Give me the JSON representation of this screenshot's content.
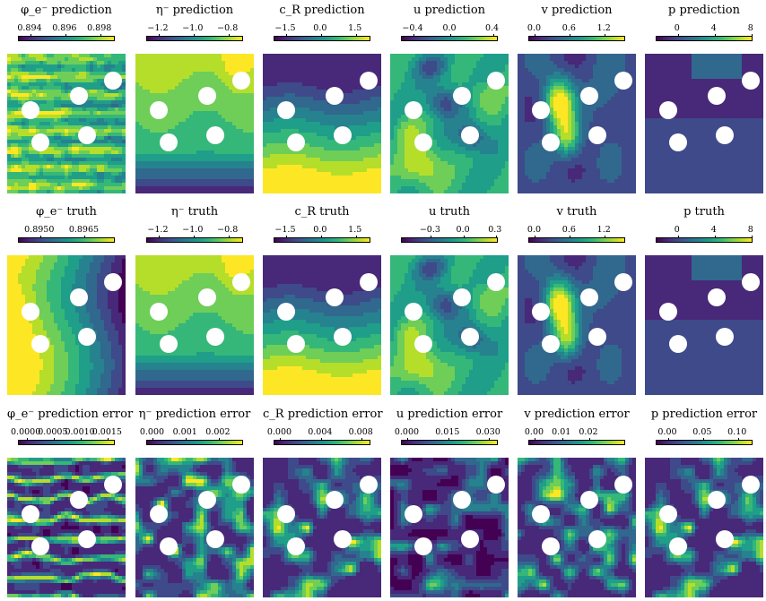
{
  "chart_data": [
    {
      "type": "heatmap",
      "title": "φ_e⁻ prediction",
      "ticks": [
        "0.894",
        "0.896",
        "0.898"
      ],
      "tick_pos": [
        0.12,
        0.48,
        0.84
      ],
      "colormap": "viridis",
      "pattern": "phi-pred"
    },
    {
      "type": "heatmap",
      "title": "η⁻ prediction",
      "ticks": [
        "−1.2",
        "−1.0",
        "−0.8"
      ],
      "tick_pos": [
        0.12,
        0.48,
        0.84
      ],
      "colormap": "viridis",
      "pattern": "eta"
    },
    {
      "type": "heatmap",
      "title": "c_R prediction",
      "ticks": [
        "−1.5",
        "0.0",
        "1.5"
      ],
      "tick_pos": [
        0.12,
        0.48,
        0.84
      ],
      "colormap": "viridis",
      "pattern": "cR"
    },
    {
      "type": "heatmap",
      "title": "u prediction",
      "ticks": [
        "−0.4",
        "0.0",
        "0.4"
      ],
      "tick_pos": [
        0.12,
        0.5,
        0.94
      ],
      "colormap": "viridis",
      "pattern": "u"
    },
    {
      "type": "heatmap",
      "title": "v prediction",
      "ticks": [
        "0.0",
        "0.6",
        "1.2"
      ],
      "tick_pos": [
        0.06,
        0.42,
        0.78
      ],
      "colormap": "viridis",
      "pattern": "v"
    },
    {
      "type": "heatmap",
      "title": "p prediction",
      "ticks": [
        "0",
        "4",
        "8"
      ],
      "tick_pos": [
        0.22,
        0.6,
        0.98
      ],
      "colormap": "viridis",
      "pattern": "p"
    },
    {
      "type": "heatmap",
      "title": "φ_e⁻ truth",
      "ticks": [
        "0.8950",
        "0.8965"
      ],
      "tick_pos": [
        0.22,
        0.68
      ],
      "colormap": "viridis",
      "pattern": "phi-truth"
    },
    {
      "type": "heatmap",
      "title": "η⁻ truth",
      "ticks": [
        "−1.2",
        "−1.0",
        "−0.8"
      ],
      "tick_pos": [
        0.12,
        0.48,
        0.84
      ],
      "colormap": "viridis",
      "pattern": "eta"
    },
    {
      "type": "heatmap",
      "title": "c_R truth",
      "ticks": [
        "−1.5",
        "0.0",
        "1.5"
      ],
      "tick_pos": [
        0.12,
        0.48,
        0.84
      ],
      "colormap": "viridis",
      "pattern": "cR"
    },
    {
      "type": "heatmap",
      "title": "u truth",
      "ticks": [
        "−0.3",
        "0.0",
        "0.3"
      ],
      "tick_pos": [
        0.3,
        0.64,
        0.97
      ],
      "colormap": "viridis",
      "pattern": "u"
    },
    {
      "type": "heatmap",
      "title": "v truth",
      "ticks": [
        "0.0",
        "0.6",
        "1.2"
      ],
      "tick_pos": [
        0.06,
        0.42,
        0.78
      ],
      "colormap": "viridis",
      "pattern": "v"
    },
    {
      "type": "heatmap",
      "title": "p truth",
      "ticks": [
        "0",
        "4",
        "8"
      ],
      "tick_pos": [
        0.22,
        0.6,
        0.98
      ],
      "colormap": "viridis",
      "pattern": "p"
    },
    {
      "type": "heatmap",
      "title": "φ_e⁻ prediction error",
      "ticks": [
        "0.0000",
        "0.0005",
        "0.0010",
        "0.0015"
      ],
      "tick_pos": [
        0.08,
        0.36,
        0.64,
        0.92
      ],
      "colormap": "viridis",
      "pattern": "err-phi"
    },
    {
      "type": "heatmap",
      "title": "η⁻ prediction error",
      "ticks": [
        "0.000",
        "0.001",
        "0.002"
      ],
      "tick_pos": [
        0.06,
        0.4,
        0.74
      ],
      "colormap": "viridis",
      "pattern": "err-eta"
    },
    {
      "type": "heatmap",
      "title": "c_R prediction error",
      "ticks": [
        "0.000",
        "0.004",
        "0.008"
      ],
      "tick_pos": [
        0.06,
        0.48,
        0.9
      ],
      "colormap": "viridis",
      "pattern": "err"
    },
    {
      "type": "heatmap",
      "title": "u prediction error",
      "ticks": [
        "0.000",
        "0.015",
        "0.030"
      ],
      "tick_pos": [
        0.06,
        0.48,
        0.9
      ],
      "colormap": "viridis",
      "pattern": "err-u"
    },
    {
      "type": "heatmap",
      "title": "v prediction error",
      "ticks": [
        "0.00",
        "0.01",
        "0.02"
      ],
      "tick_pos": [
        0.06,
        0.34,
        0.62
      ],
      "colormap": "viridis",
      "pattern": "err-v"
    },
    {
      "type": "heatmap",
      "title": "p prediction error",
      "ticks": [
        "0.00",
        "0.05",
        "0.10"
      ],
      "tick_pos": [
        0.12,
        0.48,
        0.84
      ],
      "colormap": "viridis",
      "pattern": "err"
    }
  ]
}
